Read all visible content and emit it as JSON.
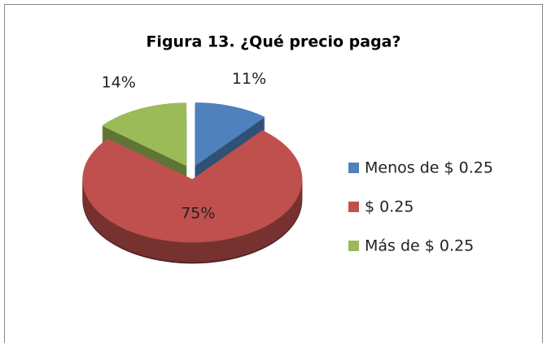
{
  "chart_data": {
    "type": "pie",
    "title": "Figura 13. ¿Qué precio paga?",
    "categories": [
      "Menos de $ 0.25",
      "$ 0.25",
      "Más de $ 0.25"
    ],
    "values": [
      11,
      75,
      14
    ],
    "value_labels": [
      "11%",
      "75%",
      "14%"
    ],
    "colors": [
      "#4f81bd",
      "#c0504d",
      "#9bbb59"
    ],
    "legend": "right"
  }
}
